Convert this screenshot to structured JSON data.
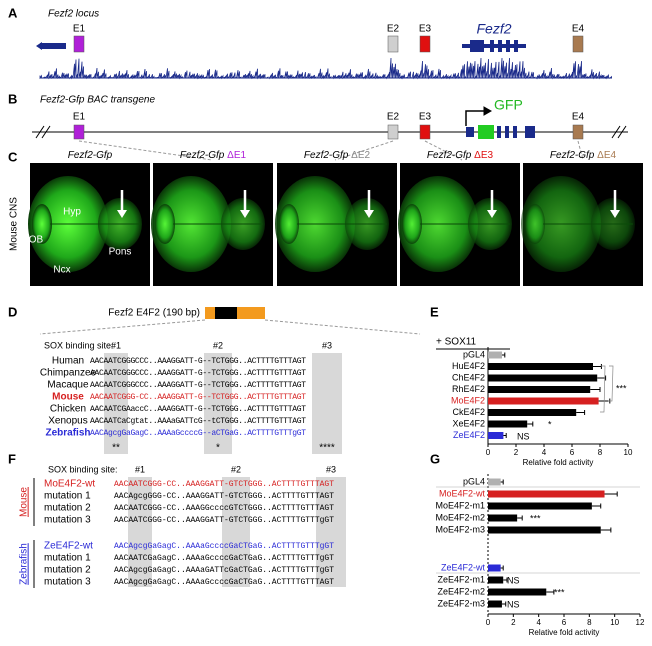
{
  "figure": {
    "panel_labels": [
      "A",
      "B",
      "C",
      "D",
      "E",
      "F",
      "G"
    ],
    "a": {
      "title": "Fezf2 locus",
      "elements": [
        "E1",
        "E2",
        "E3",
        "E4"
      ],
      "gene": "Fezf2"
    },
    "b": {
      "title": "Fezf2-Gfp BAC transgene",
      "elements": [
        "E1",
        "E2",
        "E3",
        "E4"
      ],
      "reporter": "GFP"
    },
    "c": {
      "side_label": "Mouse CNS",
      "images": [
        {
          "construct": "Fezf2-Gfp"
        },
        {
          "construct": "Fezf2-Gfp",
          "deletion": "ΔE1"
        },
        {
          "construct": "Fezf2-Gfp",
          "deletion": "ΔE2"
        },
        {
          "construct": "Fezf2-Gfp",
          "deletion": "ΔE3"
        },
        {
          "construct": "Fezf2-Gfp",
          "deletion": "ΔE4"
        }
      ],
      "region_labels": [
        "OB",
        "Hyp",
        "Ncx",
        "Pons"
      ]
    },
    "d": {
      "title": "Fezf2 E4F2 (190 bp)",
      "site_label": "SOX binding site:",
      "sites": [
        "#1",
        "#2",
        "#3"
      ],
      "rows": [
        {
          "name": "Human",
          "sequence": "AACAATCGGGCCC..AAAGGATT-G--TCTGGG..ACTTTTGTTTAGT",
          "color": "#000000"
        },
        {
          "name": "Chimpanzee",
          "sequence": "AACAATCGGGCCC..AAAGGATT-G--TCTGGG..ACTTTTGTTTAGT",
          "color": "#000000"
        },
        {
          "name": "Macaque",
          "sequence": "AACAATCGGGCCC..AAAGGATT-G--TCTGGG..ACTTTTGTTTAGT",
          "color": "#000000"
        },
        {
          "name": "Mouse",
          "sequence": "AACAATCGGG-CC..AAAGGATT-G--TCTGGG..ACTTTTGTTTAGT",
          "color": "#d62020"
        },
        {
          "name": "Chicken",
          "sequence": "AACAATCGAaccC..AAAGGATT-G--TCTGGG..ACTTTTGTTTAGT",
          "color": "#000000"
        },
        {
          "name": "Xenopus",
          "sequence": "AACAATCaCgtat..AAAaGATTcG--tCTGGG..ACTTTTGTTTAGT",
          "color": "#000000"
        },
        {
          "name": "Zebrafish",
          "sequence": "AACAgcgGaGagC..AAAaGccccG--aCTGaG..ACTTTTGTTTgGT",
          "color": "#2a2ad6"
        }
      ],
      "conservation": [
        "**",
        "*",
        "****"
      ]
    },
    "f": {
      "site_label": "SOX binding site:",
      "sites": [
        "#1",
        "#2",
        "#3"
      ],
      "groups": [
        {
          "name": "Mouse",
          "color": "#d62020",
          "rows": [
            {
              "name": "MoE4F2-wt",
              "sequence": "AACAATCGGG-CC..AAAGGATT-GTCTGGG..ACTTTTGTTTAGT"
            },
            {
              "name": "mutation 1",
              "sequence": "AACAgcgGGG-CC..AAAGGATT-GTCTGGG..ACTTTTGTTTAGT"
            },
            {
              "name": "mutation 2",
              "sequence": "AACAATCGGG-CC..AAAGGccccGTCTGGG..ACTTTTGTTTAGT"
            },
            {
              "name": "mutation 3",
              "sequence": "AACAATCGGG-CC..AAAGGATT-GTCTGGG..ACTTTTGTTTgGT"
            }
          ]
        },
        {
          "name": "Zebrafish",
          "color": "#2a2ad6",
          "rows": [
            {
              "name": "ZeE4F2-wt",
              "sequence": "AACAgcgGaGagC..AAAaGccccGaCTGaG..ACTTTTGTTTgGT"
            },
            {
              "name": "mutation 1",
              "sequence": "AACAATCGaGagC..AAAaGccccGaCTGaG..ACTTTTGTTTgGT"
            },
            {
              "name": "mutation 2",
              "sequence": "AACAgcgGaGagC..AAAaGATTcGaCTGaG..ACTTTTGTTTgGT"
            },
            {
              "name": "mutation 3",
              "sequence": "AACAgcgGaGagC..AAAaGccccGaCTGaG..ACTTTTGTTTAGT"
            }
          ]
        }
      ]
    }
  },
  "chart_data": [
    {
      "type": "bar",
      "title": "+ SOX11",
      "categories": [
        "pGL4",
        "HuE4F2",
        "ChE4F2",
        "RhE4F2",
        "MoE4F2",
        "CkE4F2",
        "XeE4F2",
        "ZeE4F2"
      ],
      "values": [
        1,
        7.5,
        7.8,
        7.3,
        7.9,
        6.3,
        2.8,
        1.1
      ],
      "errors": [
        0.2,
        0.6,
        0.6,
        0.7,
        0.8,
        0.6,
        0.4,
        0.2
      ],
      "colors": [
        "#b0b0b0",
        "#000000",
        "#000000",
        "#000000",
        "#d62020",
        "#000000",
        "#000000",
        "#2a2ad6"
      ],
      "xlim": [
        0,
        10
      ],
      "xticks": [
        0,
        2,
        4,
        6,
        8,
        10
      ],
      "xlabel": "Relative fold activity",
      "annotations": [
        "***",
        "*",
        "NS"
      ]
    },
    {
      "type": "bar",
      "categories": [
        "pGL4",
        "MoE4F2-wt",
        "MoE4F2-m1",
        "MoE4F2-m2",
        "MoE4F2-m3",
        "ZeE4F2-wt",
        "ZeE4F2-m1",
        "ZeE4F2-m2",
        "ZeE4F2-m3"
      ],
      "values": [
        1,
        9.2,
        8.2,
        2.3,
        8.9,
        1,
        1.2,
        4.6,
        1.1
      ],
      "errors": [
        0.2,
        1.0,
        0.7,
        0.4,
        0.8,
        0.2,
        0.3,
        0.6,
        0.3
      ],
      "colors": [
        "#b0b0b0",
        "#d62020",
        "#000000",
        "#000000",
        "#000000",
        "#2a2ad6",
        "#000000",
        "#000000",
        "#000000"
      ],
      "xlim": [
        0,
        12
      ],
      "xticks": [
        0,
        2,
        4,
        6,
        8,
        10,
        12
      ],
      "xlabel": "Relative fold activity",
      "annotations": [
        "***",
        "NS",
        "***",
        "NS"
      ]
    }
  ]
}
